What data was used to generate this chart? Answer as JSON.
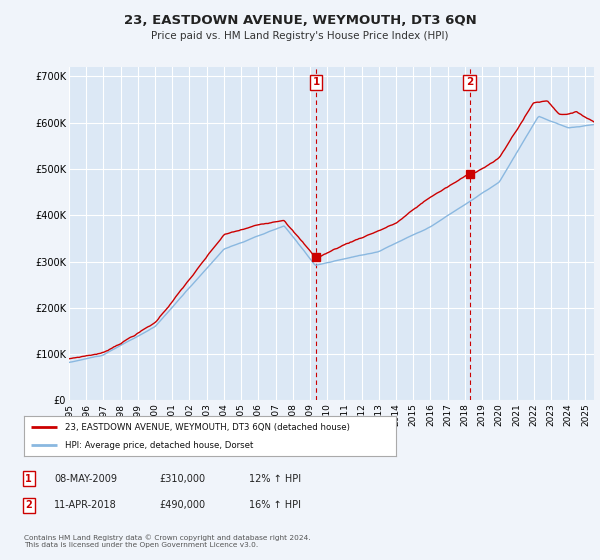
{
  "title": "23, EASTDOWN AVENUE, WEYMOUTH, DT3 6QN",
  "subtitle": "Price paid vs. HM Land Registry's House Price Index (HPI)",
  "background_color": "#f0f4fa",
  "plot_bg_color": "#dce8f5",
  "grid_color": "#ffffff",
  "ylim": [
    0,
    720000
  ],
  "yticks": [
    0,
    100000,
    200000,
    300000,
    400000,
    500000,
    600000,
    700000
  ],
  "ytick_labels": [
    "£0",
    "£100K",
    "£200K",
    "£300K",
    "£400K",
    "£500K",
    "£600K",
    "£700K"
  ],
  "xlabel_years": [
    1995,
    1996,
    1997,
    1998,
    1999,
    2000,
    2001,
    2002,
    2003,
    2004,
    2005,
    2006,
    2007,
    2008,
    2009,
    2010,
    2011,
    2012,
    2013,
    2014,
    2015,
    2016,
    2017,
    2018,
    2019,
    2020,
    2021,
    2022,
    2023,
    2024,
    2025
  ],
  "sale1_x": 2009.35,
  "sale1_y": 310000,
  "sale1_label": "1",
  "sale2_x": 2018.27,
  "sale2_y": 490000,
  "sale2_label": "2",
  "legend_line1": "23, EASTDOWN AVENUE, WEYMOUTH, DT3 6QN (detached house)",
  "legend_line2": "HPI: Average price, detached house, Dorset",
  "table_row1": [
    "1",
    "08-MAY-2009",
    "£310,000",
    "12% ↑ HPI"
  ],
  "table_row2": [
    "2",
    "11-APR-2018",
    "£490,000",
    "16% ↑ HPI"
  ],
  "footer": "Contains HM Land Registry data © Crown copyright and database right 2024.\nThis data is licensed under the Open Government Licence v3.0.",
  "hpi_color": "#8ab8e0",
  "sale_color": "#cc0000",
  "vline_color": "#cc0000",
  "xlim_left": 1995,
  "xlim_right": 2025.5
}
